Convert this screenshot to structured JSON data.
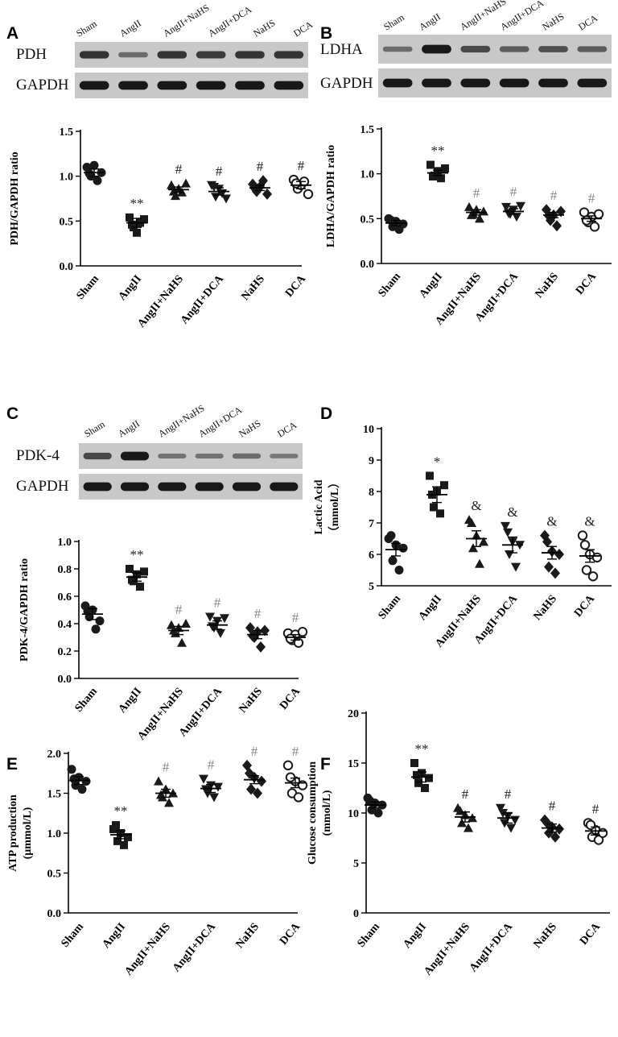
{
  "figure": {
    "groups": [
      "Sham",
      "AngII",
      "AngII+NaHS",
      "AngII+DCA",
      "NaHS",
      "DCA"
    ],
    "marker_shapes": [
      "circle",
      "square",
      "triangle-up",
      "triangle-down",
      "diamond",
      "circle-open"
    ]
  },
  "blots": {
    "A": {
      "rows": [
        "PDH",
        "GAPDH"
      ],
      "band_intensity": [
        [
          0.75,
          0.35,
          0.75,
          0.7,
          0.75,
          0.75
        ],
        [
          0.95,
          0.95,
          0.95,
          0.95,
          0.95,
          0.95
        ]
      ]
    },
    "B": {
      "rows": [
        "LDHA",
        "GAPDH"
      ],
      "band_intensity": [
        [
          0.35,
          0.95,
          0.6,
          0.45,
          0.55,
          0.45
        ],
        [
          0.95,
          0.95,
          0.95,
          0.95,
          0.95,
          0.95
        ]
      ]
    },
    "C": {
      "rows": [
        "PDK-4",
        "GAPDH"
      ],
      "band_intensity": [
        [
          0.6,
          0.95,
          0.3,
          0.3,
          0.35,
          0.25
        ],
        [
          0.95,
          0.95,
          0.95,
          0.95,
          0.95,
          0.95
        ]
      ]
    }
  },
  "chart_data": [
    {
      "panel": "A",
      "type": "scatter",
      "ylabel": "PDH/GAPDH ratio",
      "ylim": [
        0,
        1.5
      ],
      "yticks": [
        "0.0",
        "0.5",
        "1.0",
        "1.5"
      ],
      "categories": [
        "Sham",
        "AngII",
        "AngII+NaHS",
        "AngII+DCA",
        "NaHS",
        "DCA"
      ],
      "mean": [
        1.04,
        0.48,
        0.85,
        0.83,
        0.87,
        0.9
      ],
      "sem": [
        0.04,
        0.05,
        0.03,
        0.04,
        0.03,
        0.04
      ],
      "points": [
        [
          1.1,
          1.0,
          1.12,
          0.95,
          1.04,
          1.03
        ],
        [
          0.54,
          0.43,
          0.37,
          0.48,
          0.52,
          0.46
        ],
        [
          0.9,
          0.78,
          0.86,
          0.82,
          0.92,
          0.83
        ],
        [
          0.9,
          0.77,
          0.86,
          0.81,
          0.75,
          0.88
        ],
        [
          0.91,
          0.83,
          0.88,
          0.95,
          0.8,
          0.86
        ],
        [
          0.96,
          0.86,
          0.9,
          0.94,
          0.8,
          0.92
        ]
      ],
      "significance": [
        "",
        "**",
        "#",
        "#",
        "#",
        "#"
      ]
    },
    {
      "panel": "B",
      "type": "scatter",
      "ylabel": "LDHA/GAPDH ratio",
      "ylim": [
        0,
        1.5
      ],
      "yticks": [
        "0.0",
        "0.5",
        "1.0",
        "1.5"
      ],
      "categories": [
        "Sham",
        "AngII",
        "AngII+NaHS",
        "AngII+DCA",
        "NaHS",
        "DCA"
      ],
      "mean": [
        0.45,
        1.01,
        0.57,
        0.58,
        0.54,
        0.5
      ],
      "sem": [
        0.03,
        0.03,
        0.03,
        0.03,
        0.03,
        0.03
      ],
      "points": [
        [
          0.5,
          0.41,
          0.47,
          0.38,
          0.44,
          0.48
        ],
        [
          1.1,
          0.98,
          1.03,
          0.95,
          1.06,
          0.97
        ],
        [
          0.63,
          0.55,
          0.6,
          0.5,
          0.58,
          0.54
        ],
        [
          0.63,
          0.55,
          0.6,
          0.52,
          0.64,
          0.56
        ],
        [
          0.6,
          0.48,
          0.54,
          0.42,
          0.58,
          0.53
        ],
        [
          0.57,
          0.46,
          0.52,
          0.41,
          0.55,
          0.48
        ]
      ],
      "significance": [
        "",
        "**",
        "#",
        "#",
        "#",
        "#"
      ]
    },
    {
      "panel": "C",
      "type": "scatter",
      "ylabel": "PDK-4/GAPDH ratio",
      "ylim": [
        0,
        1.0
      ],
      "yticks": [
        "0.0",
        "0.2",
        "0.4",
        "0.6",
        "0.8",
        "1.0"
      ],
      "categories": [
        "Sham",
        "AngII",
        "AngII+NaHS",
        "AngII+DCA",
        "NaHS",
        "DCA"
      ],
      "mean": [
        0.47,
        0.74,
        0.35,
        0.39,
        0.32,
        0.3
      ],
      "sem": [
        0.04,
        0.03,
        0.03,
        0.03,
        0.03,
        0.02
      ],
      "points": [
        [
          0.53,
          0.45,
          0.5,
          0.36,
          0.42,
          0.49
        ],
        [
          0.8,
          0.71,
          0.76,
          0.67,
          0.78,
          0.72
        ],
        [
          0.39,
          0.33,
          0.37,
          0.26,
          0.4,
          0.35
        ],
        [
          0.45,
          0.37,
          0.42,
          0.33,
          0.44,
          0.38
        ],
        [
          0.37,
          0.3,
          0.34,
          0.23,
          0.35,
          0.31
        ],
        [
          0.33,
          0.28,
          0.32,
          0.26,
          0.34,
          0.29
        ]
      ],
      "significance": [
        "",
        "**",
        "#",
        "#",
        "#",
        "#"
      ]
    },
    {
      "panel": "D",
      "type": "scatter",
      "ylabel": "Lactic Acid",
      "ylabel2": "（mmol/L）",
      "ylim": [
        5,
        10
      ],
      "yticks": [
        "5",
        "6",
        "7",
        "8",
        "9",
        "10"
      ],
      "categories": [
        "Sham",
        "AngII",
        "AngII+NaHS",
        "AngII+DCA",
        "NaHS",
        "DCA"
      ],
      "mean": [
        6.15,
        7.9,
        6.5,
        6.3,
        6.05,
        5.95
      ],
      "sem": [
        0.2,
        0.25,
        0.25,
        0.25,
        0.2,
        0.2
      ],
      "points": [
        [
          6.5,
          5.8,
          6.3,
          5.5,
          6.2,
          6.6
        ],
        [
          8.5,
          7.5,
          8.0,
          7.3,
          8.2,
          7.9
        ],
        [
          7.1,
          6.2,
          6.6,
          5.7,
          6.4,
          7.0
        ],
        [
          6.9,
          6.0,
          6.4,
          5.6,
          6.3,
          6.7
        ],
        [
          6.6,
          5.6,
          6.1,
          5.4,
          6.0,
          6.4
        ],
        [
          6.6,
          5.5,
          6.0,
          5.3,
          5.9,
          6.3
        ]
      ],
      "significance": [
        "",
        "*",
        "&",
        "&",
        "&",
        "&"
      ]
    },
    {
      "panel": "E",
      "type": "scatter",
      "ylabel": "ATP production",
      "ylabel2": "(μmmol/L)",
      "ylim": [
        0,
        2.0
      ],
      "yticks": [
        "0.0",
        "0.5",
        "1.0",
        "1.5",
        "2.0"
      ],
      "categories": [
        "Sham",
        "AngII",
        "AngII+NaHS",
        "AngII+DCA",
        "NaHS",
        "DCA"
      ],
      "mean": [
        1.66,
        0.98,
        1.5,
        1.56,
        1.67,
        1.63
      ],
      "sem": [
        0.05,
        0.05,
        0.05,
        0.05,
        0.05,
        0.06
      ],
      "points": [
        [
          1.8,
          1.6,
          1.7,
          1.55,
          1.65,
          1.68
        ],
        [
          1.05,
          0.9,
          1.0,
          0.85,
          0.95,
          1.1
        ],
        [
          1.65,
          1.45,
          1.55,
          1.38,
          1.5,
          1.48
        ],
        [
          1.68,
          1.5,
          1.6,
          1.45,
          1.58,
          1.55
        ],
        [
          1.85,
          1.55,
          1.7,
          1.5,
          1.65,
          1.75
        ],
        [
          1.85,
          1.5,
          1.65,
          1.45,
          1.6,
          1.7
        ]
      ],
      "significance": [
        "",
        "**",
        "#",
        "#",
        "#",
        "#"
      ]
    },
    {
      "panel": "F",
      "type": "scatter",
      "ylabel": "Glucose consumption",
      "ylabel2": "(mmol/L)",
      "ylim": [
        0,
        20
      ],
      "yticks": [
        "0",
        "5",
        "10",
        "15",
        "20"
      ],
      "categories": [
        "Sham",
        "AngII",
        "AngII+NaHS",
        "AngII+DCA",
        "NaHS",
        "DCA"
      ],
      "mean": [
        10.8,
        13.6,
        9.6,
        9.5,
        8.5,
        8.2
      ],
      "sem": [
        0.3,
        0.5,
        0.5,
        0.5,
        0.4,
        0.4
      ],
      "points": [
        [
          11.5,
          10.3,
          11.0,
          10.0,
          10.8,
          11.2
        ],
        [
          15.0,
          13.0,
          14.0,
          12.5,
          13.5,
          13.8
        ],
        [
          10.5,
          9.0,
          9.8,
          8.5,
          9.5,
          10.2
        ],
        [
          10.5,
          9.0,
          9.7,
          8.5,
          9.3,
          10.0
        ],
        [
          9.3,
          8.0,
          8.6,
          7.6,
          8.4,
          9.0
        ],
        [
          9.0,
          7.6,
          8.3,
          7.3,
          8.0,
          8.8
        ]
      ],
      "significance": [
        "",
        "**",
        "#",
        "#",
        "#",
        "#"
      ]
    }
  ]
}
